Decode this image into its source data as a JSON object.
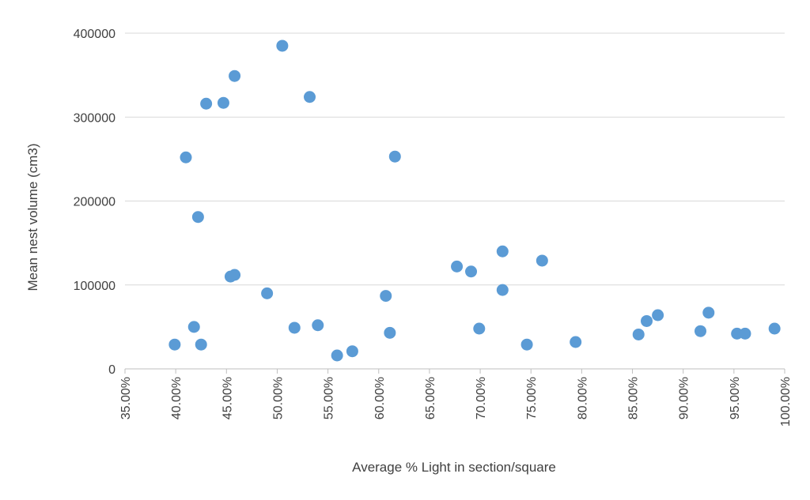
{
  "chart_data": {
    "type": "scatter",
    "title": "",
    "xlabel": "Average % Light in section/square",
    "ylabel": "Mean nest volume (cm3)",
    "xlim": [
      0.35,
      1.0
    ],
    "ylim": [
      0,
      400000
    ],
    "x_ticks": [
      0.35,
      0.4,
      0.45,
      0.5,
      0.55,
      0.6,
      0.65,
      0.7,
      0.75,
      0.8,
      0.85,
      0.9,
      0.95,
      1.0
    ],
    "x_tick_labels": [
      "35.00%",
      "40.00%",
      "45.00%",
      "50.00%",
      "55.00%",
      "60.00%",
      "65.00%",
      "70.00%",
      "75.00%",
      "80.00%",
      "85.00%",
      "90.00%",
      "95.00%",
      "100.00%"
    ],
    "y_ticks": [
      0,
      100000,
      200000,
      300000,
      400000
    ],
    "y_tick_labels": [
      "0",
      "100000",
      "200000",
      "300000",
      "400000"
    ],
    "grid": "horizontal",
    "marker_color": "#5b9bd5",
    "series": [
      {
        "points": [
          {
            "x": 0.399,
            "y": 29000
          },
          {
            "x": 0.41,
            "y": 252000
          },
          {
            "x": 0.418,
            "y": 50000
          },
          {
            "x": 0.422,
            "y": 181000
          },
          {
            "x": 0.425,
            "y": 29000
          },
          {
            "x": 0.43,
            "y": 316000
          },
          {
            "x": 0.447,
            "y": 317000
          },
          {
            "x": 0.454,
            "y": 110000
          },
          {
            "x": 0.458,
            "y": 349000
          },
          {
            "x": 0.458,
            "y": 112000
          },
          {
            "x": 0.49,
            "y": 90000
          },
          {
            "x": 0.505,
            "y": 385000
          },
          {
            "x": 0.517,
            "y": 49000
          },
          {
            "x": 0.532,
            "y": 324000
          },
          {
            "x": 0.54,
            "y": 52000
          },
          {
            "x": 0.559,
            "y": 16000
          },
          {
            "x": 0.574,
            "y": 21000
          },
          {
            "x": 0.607,
            "y": 87000
          },
          {
            "x": 0.611,
            "y": 43000
          },
          {
            "x": 0.616,
            "y": 253000
          },
          {
            "x": 0.677,
            "y": 122000
          },
          {
            "x": 0.691,
            "y": 116000
          },
          {
            "x": 0.699,
            "y": 48000
          },
          {
            "x": 0.722,
            "y": 140000
          },
          {
            "x": 0.722,
            "y": 94000
          },
          {
            "x": 0.746,
            "y": 29000
          },
          {
            "x": 0.761,
            "y": 129000
          },
          {
            "x": 0.794,
            "y": 32000
          },
          {
            "x": 0.856,
            "y": 41000
          },
          {
            "x": 0.864,
            "y": 57000
          },
          {
            "x": 0.875,
            "y": 64000
          },
          {
            "x": 0.917,
            "y": 45000
          },
          {
            "x": 0.925,
            "y": 67000
          },
          {
            "x": 0.953,
            "y": 42000
          },
          {
            "x": 0.961,
            "y": 42000
          },
          {
            "x": 0.99,
            "y": 48000
          }
        ]
      }
    ]
  }
}
